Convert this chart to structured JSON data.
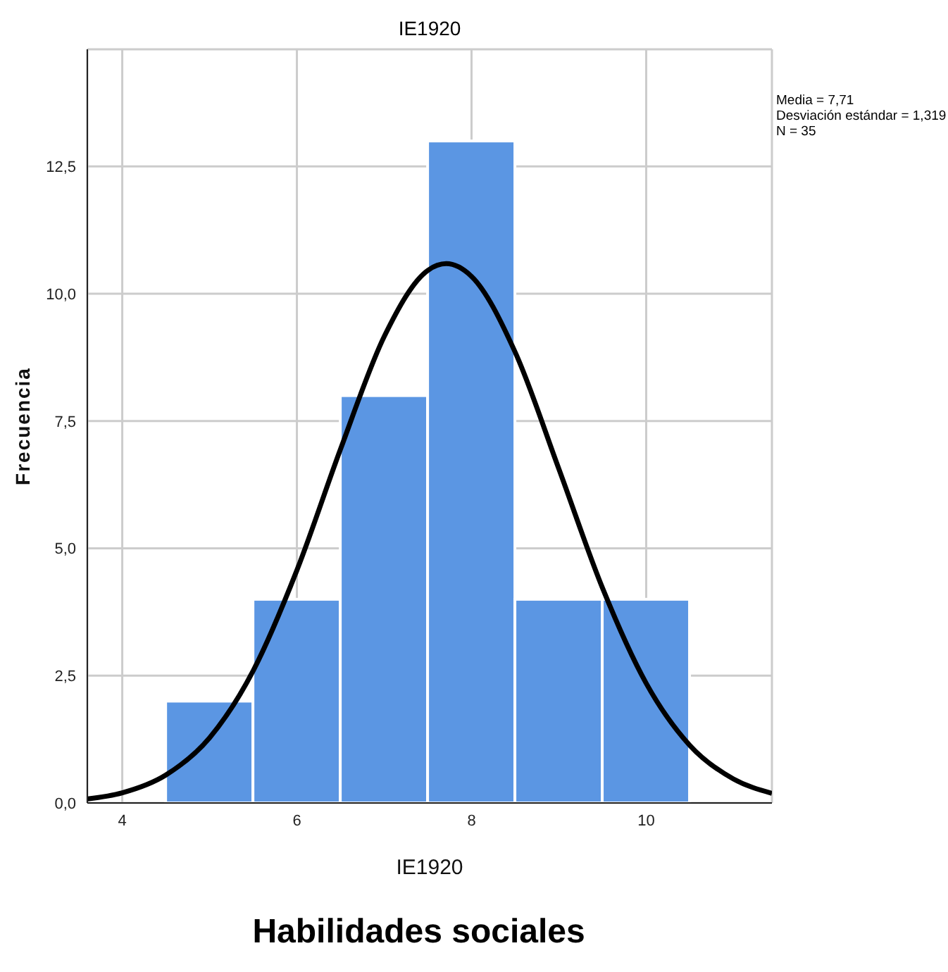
{
  "chart_data": {
    "type": "histogram",
    "title": "IE1920",
    "xlabel": "IE1920",
    "ylabel": "Frecuencia",
    "bins": [
      4.5,
      5.5,
      6.5,
      7.5,
      8.5,
      9.5,
      10.5
    ],
    "values": [
      2,
      4,
      8,
      13,
      4,
      4
    ],
    "color": "#5b96e3",
    "series": [
      {
        "type": "line",
        "color": "#000000",
        "x": [
          3.6,
          4,
          4.5,
          5,
          5.5,
          6,
          6.5,
          7,
          7.5,
          7.71,
          8,
          8.5,
          9,
          9.5,
          10,
          10.5,
          11,
          11.44
        ],
        "values": [
          0.08,
          0.2,
          0.55,
          1.28,
          2.6,
          4.57,
          6.95,
          9.16,
          10.46,
          10.59,
          10.34,
          8.85,
          6.56,
          4.22,
          2.35,
          1.13,
          0.47,
          0.19
        ]
      }
    ],
    "xlim": [
      3.6,
      11.44
    ],
    "xticks": [
      4,
      6,
      8,
      10
    ],
    "ylim": [
      0,
      14.8
    ],
    "yticks": [
      {
        "value": 0,
        "label": "0,0"
      },
      {
        "value": 2.5,
        "label": "2,5"
      },
      {
        "value": 5,
        "label": "5,0"
      },
      {
        "value": 7.5,
        "label": "7,5"
      },
      {
        "value": 10,
        "label": "10,0"
      },
      {
        "value": 12.5,
        "label": "12,5"
      }
    ],
    "grid": true,
    "annotations": [
      "Media = 7,71",
      "Desviación estándar = 1,319",
      "N = 35",
      "Habilidades sociales"
    ]
  }
}
